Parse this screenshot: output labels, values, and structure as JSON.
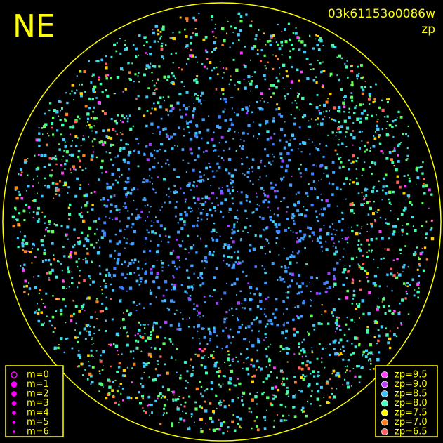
{
  "header": {
    "direction": "NE",
    "frame_id": "03k61153o0086w",
    "mode": "zp"
  },
  "magnitude_legend": [
    "m=0",
    "m=1",
    "m=2",
    "m=3",
    "m=4",
    "m=5",
    "m=6"
  ],
  "zp_legend": [
    "zp=9.5",
    "zp=9.0",
    "zp=8.5",
    "zp=8.0",
    "zp=7.5",
    "zp=7.0",
    "zp=6.5"
  ]
}
